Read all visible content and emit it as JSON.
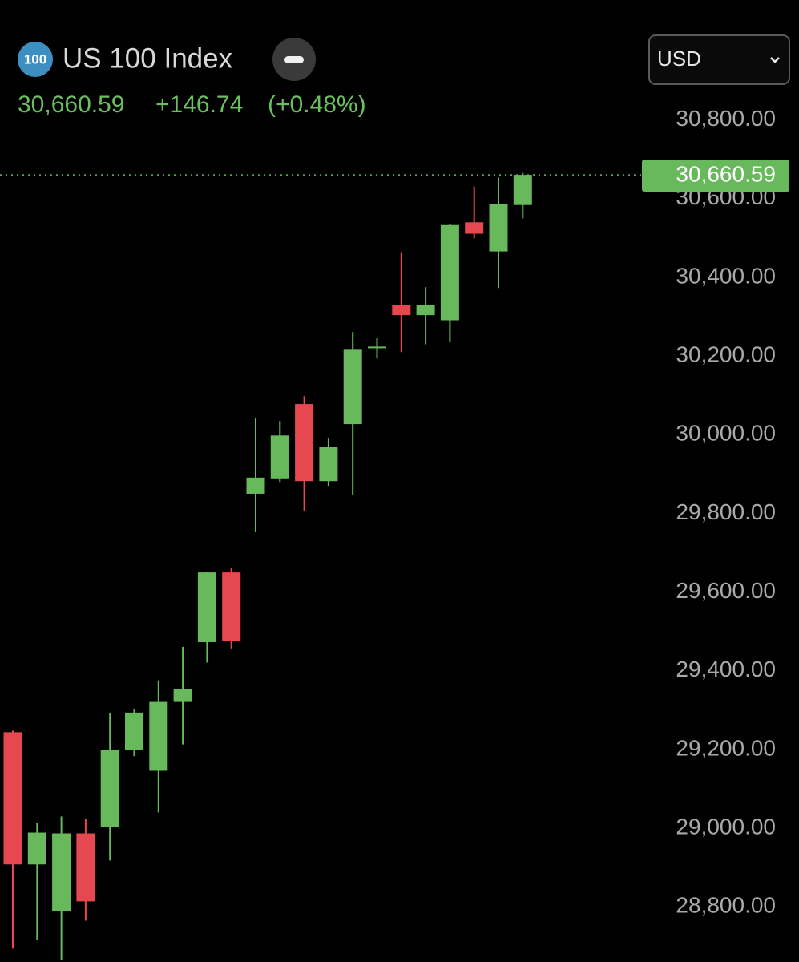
{
  "header": {
    "icon": "100",
    "title": "US 100 Index",
    "price": "30,660.59",
    "change": "+146.74",
    "change_percent": "(+0.48%)",
    "currency": "USD"
  },
  "chart_data": {
    "type": "candlestick",
    "categories": [
      null,
      null,
      null,
      null,
      null,
      null,
      null,
      null,
      null,
      null,
      null,
      null,
      null,
      null,
      null,
      null,
      null,
      null,
      null,
      null,
      null,
      null
    ],
    "open": [
      29244,
      28908,
      28790,
      28987,
      29003,
      29199,
      29146,
      29321,
      29473,
      29650,
      29850,
      29889,
      30078,
      29882,
      30027,
      30222,
      30330,
      30304,
      30291,
      30540,
      30466,
      30584
    ],
    "high": [
      29248,
      29014,
      29030,
      29024,
      29294,
      29304,
      29376,
      29461,
      29652,
      29661,
      30043,
      30035,
      30098,
      29992,
      30261,
      30247,
      30464,
      30375,
      30535,
      30631,
      30654,
      30666
    ],
    "low": [
      28694,
      28715,
      28664,
      28765,
      28918,
      29183,
      29040,
      29213,
      29421,
      29457,
      29752,
      29880,
      29807,
      29870,
      29848,
      30194,
      30210,
      30230,
      30236,
      30499,
      30373,
      30550
    ],
    "close": [
      28908,
      28989,
      28987,
      28814,
      29199,
      29294,
      29321,
      29353,
      29650,
      29477,
      29891,
      29998,
      29882,
      29970,
      30218,
      30224,
      30304,
      30330,
      30533,
      30511,
      30586,
      30660.59
    ],
    "up_color": "#68b85c",
    "down_color": "#e5494f",
    "ylim": [
      28660,
      31105
    ],
    "yticks": [
      {
        "value": 28800,
        "label": "28,800.00"
      },
      {
        "value": 29000,
        "label": "29,000.00"
      },
      {
        "value": 29200,
        "label": "29,200.00"
      },
      {
        "value": 29400,
        "label": "29,400.00"
      },
      {
        "value": 29600,
        "label": "29,600.00"
      },
      {
        "value": 29800,
        "label": "29,800.00"
      },
      {
        "value": 30000,
        "label": "30,000.00"
      },
      {
        "value": 30200,
        "label": "30,200.00"
      },
      {
        "value": 30400,
        "label": "30,400.00"
      },
      {
        "value": 30600,
        "label": "30,600.00"
      },
      {
        "value": 30800,
        "label": "30,800.00"
      }
    ],
    "last_price": {
      "value": 30660.59,
      "label": "30,660.59"
    }
  }
}
